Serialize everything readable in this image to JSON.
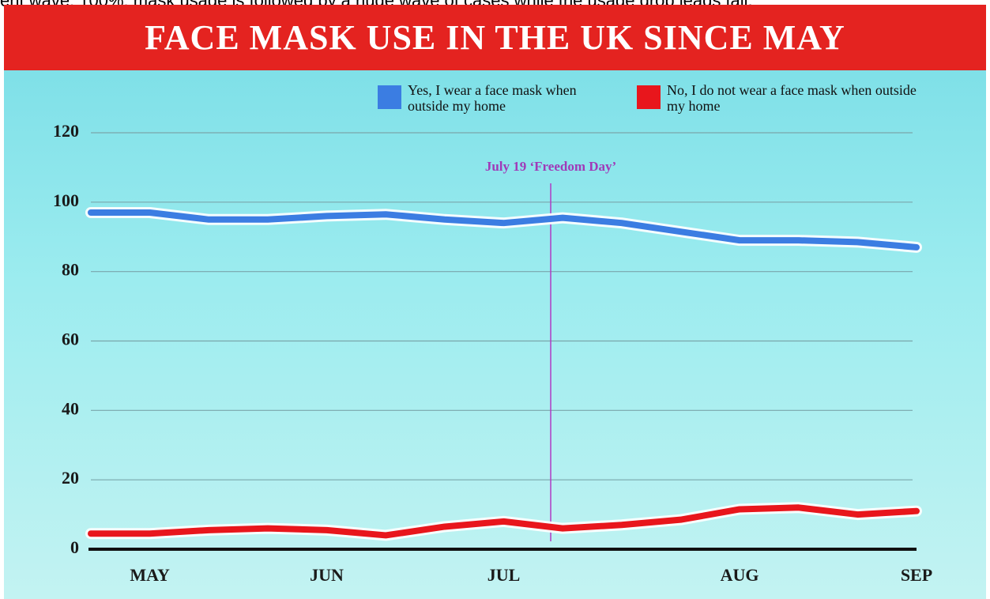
{
  "caption": "ent wave; 100%: mask usage is followed by a huge wave of cases while the usage drop leads fall.",
  "chart_data": {
    "type": "line",
    "title": "FACE MASK USE IN THE UK SINCE MAY",
    "annotation": "July 19 ‘Freedom Day’",
    "categories": [
      null,
      "MAY",
      null,
      null,
      "JUN",
      null,
      null,
      "JUL",
      null,
      null,
      null,
      "AUG",
      null,
      null,
      "SEP"
    ],
    "series": [
      {
        "name": "Yes, I wear a face mask when outside my home",
        "color": "#3b7de2",
        "values": [
          97,
          97,
          95,
          95,
          96,
          96.5,
          95,
          94,
          95.5,
          94,
          91.5,
          89,
          89,
          88.5,
          87
        ]
      },
      {
        "name": "No, I do not wear a face mask when outside my home",
        "color": "#e8161c",
        "values": [
          4.5,
          4.5,
          5.5,
          6,
          5.5,
          4,
          6.5,
          8,
          6,
          7,
          8.5,
          11.5,
          12,
          10,
          11
        ]
      }
    ],
    "ylim": [
      0,
      120
    ],
    "yticks": [
      0,
      20,
      40,
      60,
      80,
      100,
      120
    ],
    "grid": true
  }
}
